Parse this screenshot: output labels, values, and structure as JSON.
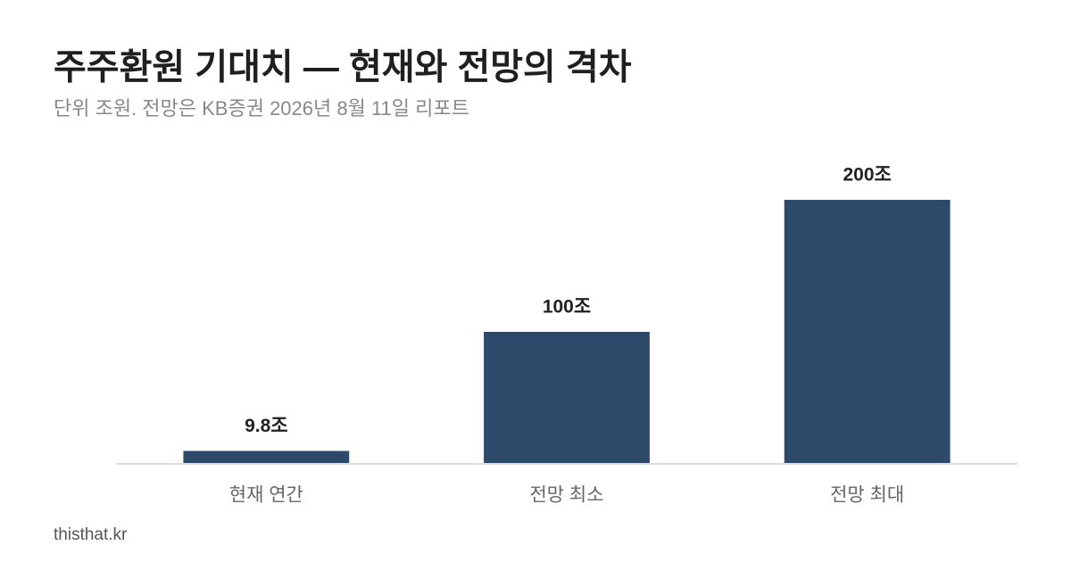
{
  "chart_data": {
    "type": "bar",
    "title": "주주환원 기대치 — 현재와 전망의 격차",
    "subtitle": "단위 조원. 전망은 KB증권 2026년 8월 11일 리포트",
    "categories": [
      "현재 연간",
      "전망 최소",
      "전망 최대"
    ],
    "values": [
      9.8,
      100,
      200
    ],
    "value_labels": [
      "9.8조",
      "100조",
      "200조"
    ],
    "color": "#2d4a6b",
    "ylim": [
      0,
      200
    ],
    "footer": "thisthat.kr"
  }
}
